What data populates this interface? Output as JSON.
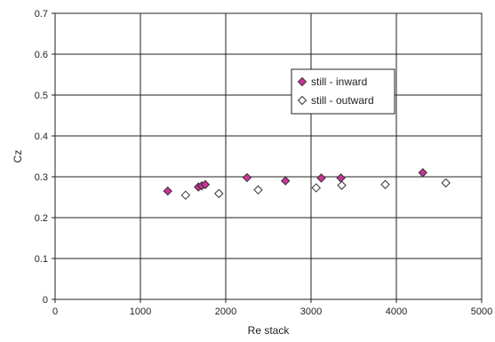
{
  "chart_data": {
    "type": "scatter",
    "title": "",
    "xlabel": "Re stack",
    "ylabel": "Cz",
    "xlim": [
      0,
      5000
    ],
    "ylim": [
      0,
      0.7
    ],
    "xticks": [
      0,
      1000,
      2000,
      3000,
      4000,
      5000
    ],
    "yticks": [
      0,
      0.1,
      0.2,
      0.3,
      0.4,
      0.5,
      0.6,
      0.7
    ],
    "xtick_labels": [
      "0",
      "1000",
      "2000",
      "3000",
      "4000",
      "5000"
    ],
    "ytick_labels": [
      "0",
      "0.1",
      "0.2",
      "0.3",
      "0.4",
      "0.5",
      "0.6",
      "0.7"
    ],
    "grid": true,
    "legend_position": "center-right",
    "series": [
      {
        "name": "still - inward",
        "color": "#cc3399",
        "marker": "diamond-filled",
        "points": [
          {
            "x": 1320,
            "y": 0.265
          },
          {
            "x": 1680,
            "y": 0.275
          },
          {
            "x": 1720,
            "y": 0.278
          },
          {
            "x": 1760,
            "y": 0.281
          },
          {
            "x": 2250,
            "y": 0.298
          },
          {
            "x": 2700,
            "y": 0.29
          },
          {
            "x": 3120,
            "y": 0.297
          },
          {
            "x": 3350,
            "y": 0.297
          },
          {
            "x": 4310,
            "y": 0.31
          }
        ]
      },
      {
        "name": "still - outward",
        "color": "#ffffff",
        "marker": "diamond-open",
        "points": [
          {
            "x": 1530,
            "y": 0.255
          },
          {
            "x": 1920,
            "y": 0.259
          },
          {
            "x": 2380,
            "y": 0.268
          },
          {
            "x": 3060,
            "y": 0.273
          },
          {
            "x": 3360,
            "y": 0.279
          },
          {
            "x": 3870,
            "y": 0.281
          },
          {
            "x": 4580,
            "y": 0.285
          }
        ]
      }
    ]
  }
}
